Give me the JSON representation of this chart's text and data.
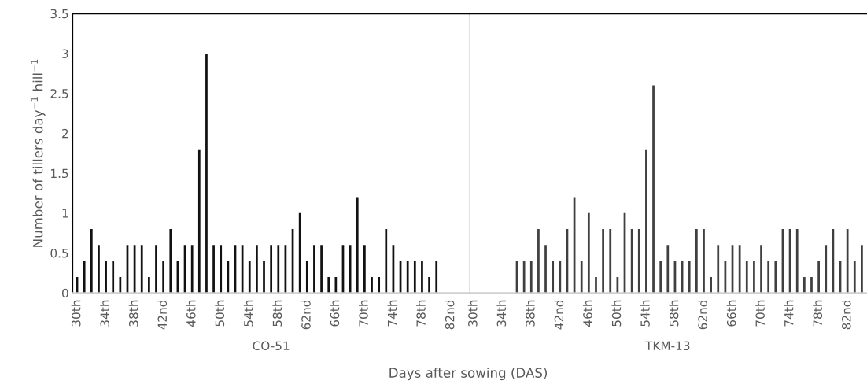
{
  "chart_data": [
    {
      "type": "bar",
      "xlabel": "CO-51",
      "ylabel": "Number of tillers day$^{−1}$ hill$^{−1}$",
      "annotations": [
        "Days after sowing (DAS)"
      ],
      "categories": [
        "30th",
        null,
        null,
        null,
        "34th",
        null,
        null,
        null,
        "38th",
        null,
        null,
        null,
        "42nd",
        null,
        null,
        null,
        "46th",
        null,
        null,
        null,
        "50th",
        null,
        null,
        null,
        "54th",
        null,
        null,
        null,
        "58th",
        null,
        null,
        null,
        "62nd",
        null,
        null,
        null,
        "66th",
        null,
        null,
        null,
        "70th",
        null,
        null,
        null,
        "74th",
        null,
        null,
        null,
        "78th",
        null,
        null,
        null,
        "82nd",
        null,
        null
      ],
      "values": [
        0.2,
        0.4,
        0.8,
        0.6,
        0.4,
        0.4,
        0.2,
        0.6,
        0.6,
        0.6,
        0.2,
        0.6,
        0.4,
        0.8,
        0.4,
        0.6,
        0.6,
        1.8,
        3.0,
        0.6,
        0.6,
        0.4,
        0.6,
        0.6,
        0.4,
        0.6,
        0.4,
        0.6,
        0.6,
        0.6,
        0.8,
        1.0,
        0.4,
        0.6,
        0.6,
        0.2,
        0.2,
        0.6,
        0.6,
        1.2,
        0.6,
        0.2,
        0.2,
        0.8,
        0.6,
        0.4,
        0.4,
        0.4,
        0.4,
        0.2,
        0.4,
        null,
        null,
        null,
        null
      ],
      "color": "#111111",
      "ylim": [
        0,
        3.5
      ],
      "yticks": [
        0,
        {
          "value": 0.5,
          "label": "0.5"
        },
        1,
        {
          "value": 1.5,
          "label": "1.5"
        },
        2,
        {
          "value": 2.5,
          "label": "2.5"
        },
        3,
        {
          "value": 3.5,
          "label": "3.5"
        }
      ],
      "grid": false
    },
    {
      "type": "bar",
      "xlabel": "TKM-13",
      "categories": [
        "30th",
        null,
        null,
        null,
        "34th",
        null,
        null,
        null,
        "38th",
        null,
        null,
        null,
        "42nd",
        null,
        null,
        null,
        "46th",
        null,
        null,
        null,
        "50th",
        null,
        null,
        null,
        "54th",
        null,
        null,
        null,
        "58th",
        null,
        null,
        null,
        "62nd",
        null,
        null,
        null,
        "66th",
        null,
        null,
        null,
        "70th",
        null,
        null,
        null,
        "74th",
        null,
        null,
        null,
        "78th",
        null,
        null,
        null,
        "82nd",
        null,
        null
      ],
      "values": [
        null,
        null,
        null,
        null,
        null,
        null,
        0.4,
        0.4,
        0.4,
        0.8,
        0.6,
        0.4,
        0.4,
        0.8,
        1.2,
        0.4,
        1.0,
        0.2,
        0.8,
        0.8,
        0.2,
        1.0,
        0.8,
        0.8,
        1.8,
        2.6,
        0.4,
        0.6,
        0.4,
        0.4,
        0.4,
        0.8,
        0.8,
        0.2,
        0.6,
        0.4,
        0.6,
        0.6,
        0.4,
        0.4,
        0.6,
        0.4,
        0.4,
        0.8,
        0.8,
        0.8,
        0.2,
        0.2,
        0.4,
        0.6,
        0.8,
        0.4,
        0.8,
        0.4,
        0.6
      ],
      "color": "#3f3f3f",
      "ylim": [
        0,
        3.5
      ],
      "grid": false,
      "tick_labels": "x"
    }
  ]
}
